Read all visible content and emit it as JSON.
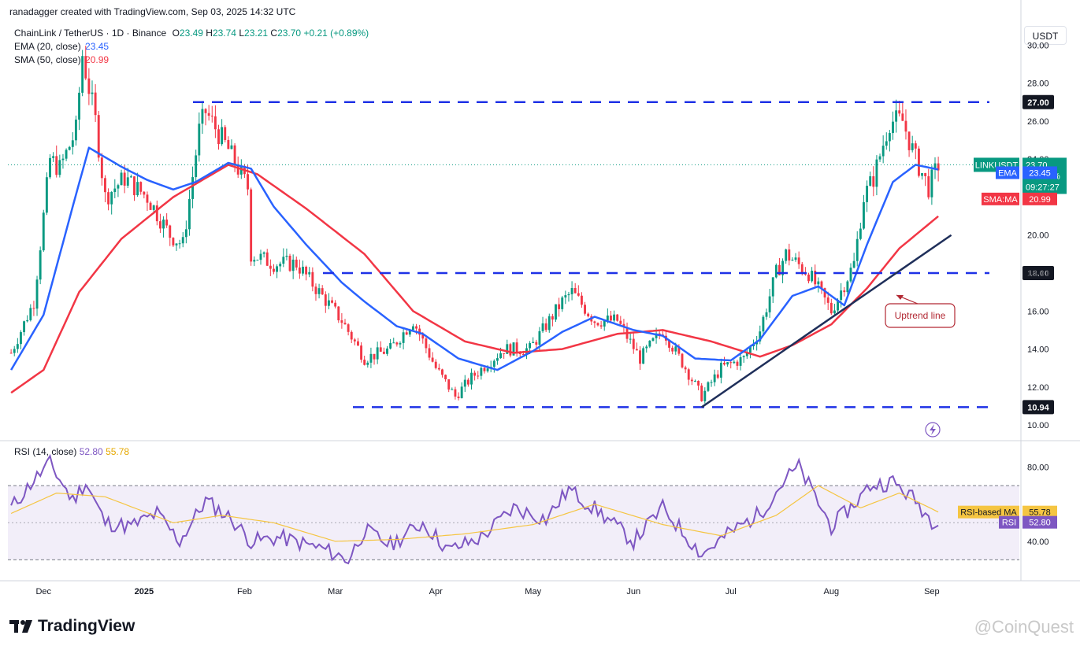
{
  "caption": "ranadagger created with TradingView.com, Sep 03, 2025 14:32 UTC",
  "legend": {
    "symbol": "ChainLink / TetherUS · 1D · Binance",
    "ohlc": {
      "o_label": "O",
      "o": "23.49",
      "h_label": "H",
      "h": "23.74",
      "l_label": "L",
      "l": "23.21",
      "c_label": "C",
      "c": "23.70",
      "change": "+0.21 (+0.89%)"
    },
    "ema": {
      "label": "EMA (20, close)",
      "value": "23.45"
    },
    "sma": {
      "label": "SMA (50, close)",
      "value": "20.99"
    },
    "rsi": {
      "label": "RSI (14, close)",
      "value": "52.80",
      "ma_value": "55.78"
    }
  },
  "currency_button": "USDT",
  "brand": "TradingView",
  "watermark": "@CoinQuest",
  "colors": {
    "up": "#089981",
    "down": "#f23645",
    "ema": "#2962ff",
    "sma": "#f23645",
    "rsi": "#7e57c2",
    "rsi_ma": "#f5c542",
    "levels": "#1e31e6",
    "trend": "#1f2f5a",
    "annotation": "#b22833"
  },
  "chart_data": {
    "type": "candlestick",
    "title": "ChainLink / TetherUS · 1D · Binance",
    "x_ticks": [
      "Dec",
      "2025",
      "Feb",
      "Mar",
      "Apr",
      "May",
      "Jun",
      "Jul",
      "Aug",
      "Sep"
    ],
    "y_ticks": [
      "10.00",
      "12.00",
      "14.00",
      "16.00",
      "18.00",
      "20.00",
      "22.00",
      "24.00",
      "26.00",
      "28.00",
      "30.00"
    ],
    "ylim": [
      9.3,
      31.3
    ],
    "candle_anchors": [
      {
        "date": "2024-11-21",
        "close": 13.8
      },
      {
        "date": "2024-11-28",
        "close": 16.5
      },
      {
        "date": "2024-12-03",
        "close": 24.0
      },
      {
        "date": "2024-12-06",
        "close": 23.5
      },
      {
        "date": "2024-12-11",
        "close": 25.5
      },
      {
        "date": "2024-12-13",
        "close": 29.5
      },
      {
        "date": "2024-12-17",
        "close": 26.0
      },
      {
        "date": "2024-12-20",
        "close": 22.0
      },
      {
        "date": "2024-12-26",
        "close": 23.0
      },
      {
        "date": "2025-01-02",
        "close": 22.0
      },
      {
        "date": "2025-01-09",
        "close": 20.0
      },
      {
        "date": "2025-01-13",
        "close": 19.5
      },
      {
        "date": "2025-01-18",
        "close": 25.5
      },
      {
        "date": "2025-01-20",
        "close": 26.5
      },
      {
        "date": "2025-01-27",
        "close": 24.5
      },
      {
        "date": "2025-02-02",
        "close": 22.5
      },
      {
        "date": "2025-02-03",
        "close": 19.0
      },
      {
        "date": "2025-02-10",
        "close": 18.5
      },
      {
        "date": "2025-02-17",
        "close": 18.5
      },
      {
        "date": "2025-02-24",
        "close": 17.0
      },
      {
        "date": "2025-03-03",
        "close": 15.5
      },
      {
        "date": "2025-03-10",
        "close": 13.5
      },
      {
        "date": "2025-03-18",
        "close": 14.0
      },
      {
        "date": "2025-03-25",
        "close": 15.5
      },
      {
        "date": "2025-04-01",
        "close": 13.0
      },
      {
        "date": "2025-04-07",
        "close": 11.5
      },
      {
        "date": "2025-04-12",
        "close": 12.5
      },
      {
        "date": "2025-04-22",
        "close": 14.0
      },
      {
        "date": "2025-04-30",
        "close": 14.0
      },
      {
        "date": "2025-05-10",
        "close": 16.5
      },
      {
        "date": "2025-05-13",
        "close": 17.0
      },
      {
        "date": "2025-05-20",
        "close": 15.5
      },
      {
        "date": "2025-05-27",
        "close": 15.5
      },
      {
        "date": "2025-06-03",
        "close": 13.5
      },
      {
        "date": "2025-06-10",
        "close": 15.0
      },
      {
        "date": "2025-06-17",
        "close": 13.0
      },
      {
        "date": "2025-06-22",
        "close": 11.5
      },
      {
        "date": "2025-06-28",
        "close": 13.0
      },
      {
        "date": "2025-07-05",
        "close": 13.5
      },
      {
        "date": "2025-07-10",
        "close": 15.0
      },
      {
        "date": "2025-07-15",
        "close": 18.0
      },
      {
        "date": "2025-07-18",
        "close": 19.0
      },
      {
        "date": "2025-07-25",
        "close": 18.0
      },
      {
        "date": "2025-08-01",
        "close": 16.0
      },
      {
        "date": "2025-08-08",
        "close": 18.5
      },
      {
        "date": "2025-08-11",
        "close": 22.0
      },
      {
        "date": "2025-08-14",
        "close": 23.0
      },
      {
        "date": "2025-08-19",
        "close": 26.0
      },
      {
        "date": "2025-08-23",
        "close": 26.0
      },
      {
        "date": "2025-08-27",
        "close": 24.0
      },
      {
        "date": "2025-08-31",
        "close": 22.5
      },
      {
        "date": "2025-09-03",
        "close": 23.7
      }
    ],
    "ema_anchors": [
      {
        "date": "2024-11-21",
        "value": 12.9
      },
      {
        "date": "2024-12-01",
        "value": 15.8
      },
      {
        "date": "2024-12-10",
        "value": 21.5
      },
      {
        "date": "2024-12-15",
        "value": 24.6
      },
      {
        "date": "2024-12-25",
        "value": 23.6
      },
      {
        "date": "2025-01-02",
        "value": 22.9
      },
      {
        "date": "2025-01-10",
        "value": 22.4
      },
      {
        "date": "2025-01-17",
        "value": 22.8
      },
      {
        "date": "2025-01-27",
        "value": 23.8
      },
      {
        "date": "2025-02-03",
        "value": 23.5
      },
      {
        "date": "2025-02-10",
        "value": 21.5
      },
      {
        "date": "2025-02-20",
        "value": 19.5
      },
      {
        "date": "2025-03-03",
        "value": 17.5
      },
      {
        "date": "2025-03-10",
        "value": 16.5
      },
      {
        "date": "2025-03-20",
        "value": 15.2
      },
      {
        "date": "2025-03-28",
        "value": 14.8
      },
      {
        "date": "2025-04-08",
        "value": 13.5
      },
      {
        "date": "2025-04-20",
        "value": 12.9
      },
      {
        "date": "2025-05-01",
        "value": 13.9
      },
      {
        "date": "2025-05-10",
        "value": 14.9
      },
      {
        "date": "2025-05-20",
        "value": 15.7
      },
      {
        "date": "2025-06-01",
        "value": 15.0
      },
      {
        "date": "2025-06-10",
        "value": 14.7
      },
      {
        "date": "2025-06-20",
        "value": 13.5
      },
      {
        "date": "2025-07-01",
        "value": 13.4
      },
      {
        "date": "2025-07-10",
        "value": 14.5
      },
      {
        "date": "2025-07-20",
        "value": 16.8
      },
      {
        "date": "2025-07-28",
        "value": 17.3
      },
      {
        "date": "2025-08-05",
        "value": 16.3
      },
      {
        "date": "2025-08-12",
        "value": 19.5
      },
      {
        "date": "2025-08-20",
        "value": 22.8
      },
      {
        "date": "2025-08-27",
        "value": 23.7
      },
      {
        "date": "2025-09-03",
        "value": 23.45
      }
    ],
    "sma_anchors": [
      {
        "date": "2024-11-21",
        "value": 11.7
      },
      {
        "date": "2024-12-01",
        "value": 12.9
      },
      {
        "date": "2024-12-12",
        "value": 17.0
      },
      {
        "date": "2024-12-25",
        "value": 19.8
      },
      {
        "date": "2025-01-10",
        "value": 22.0
      },
      {
        "date": "2025-01-27",
        "value": 23.7
      },
      {
        "date": "2025-02-05",
        "value": 23.2
      },
      {
        "date": "2025-02-20",
        "value": 21.4
      },
      {
        "date": "2025-03-10",
        "value": 19.0
      },
      {
        "date": "2025-03-25",
        "value": 16.0
      },
      {
        "date": "2025-04-10",
        "value": 14.4
      },
      {
        "date": "2025-04-25",
        "value": 13.8
      },
      {
        "date": "2025-05-10",
        "value": 14.0
      },
      {
        "date": "2025-05-27",
        "value": 14.8
      },
      {
        "date": "2025-06-10",
        "value": 15.0
      },
      {
        "date": "2025-06-25",
        "value": 14.4
      },
      {
        "date": "2025-07-10",
        "value": 13.6
      },
      {
        "date": "2025-07-20",
        "value": 14.2
      },
      {
        "date": "2025-08-01",
        "value": 15.3
      },
      {
        "date": "2025-08-12",
        "value": 17.2
      },
      {
        "date": "2025-08-22",
        "value": 19.3
      },
      {
        "date": "2025-09-03",
        "value": 20.99
      }
    ],
    "rsi_anchors": [
      {
        "date": "2024-11-21",
        "value": 58
      },
      {
        "date": "2024-11-28",
        "value": 73
      },
      {
        "date": "2024-12-03",
        "value": 82
      },
      {
        "date": "2024-12-10",
        "value": 62
      },
      {
        "date": "2024-12-14",
        "value": 72
      },
      {
        "date": "2024-12-20",
        "value": 50
      },
      {
        "date": "2024-12-28",
        "value": 48
      },
      {
        "date": "2025-01-05",
        "value": 55
      },
      {
        "date": "2025-01-12",
        "value": 40
      },
      {
        "date": "2025-01-20",
        "value": 62
      },
      {
        "date": "2025-01-28",
        "value": 52
      },
      {
        "date": "2025-02-03",
        "value": 40
      },
      {
        "date": "2025-02-12",
        "value": 42
      },
      {
        "date": "2025-02-25",
        "value": 36
      },
      {
        "date": "2025-03-05",
        "value": 30
      },
      {
        "date": "2025-03-10",
        "value": 46
      },
      {
        "date": "2025-03-18",
        "value": 38
      },
      {
        "date": "2025-03-28",
        "value": 50
      },
      {
        "date": "2025-04-05",
        "value": 35
      },
      {
        "date": "2025-04-15",
        "value": 42
      },
      {
        "date": "2025-04-25",
        "value": 58
      },
      {
        "date": "2025-05-05",
        "value": 52
      },
      {
        "date": "2025-05-12",
        "value": 68
      },
      {
        "date": "2025-05-22",
        "value": 55
      },
      {
        "date": "2025-06-01",
        "value": 40
      },
      {
        "date": "2025-06-10",
        "value": 58
      },
      {
        "date": "2025-06-22",
        "value": 33
      },
      {
        "date": "2025-07-01",
        "value": 45
      },
      {
        "date": "2025-07-10",
        "value": 55
      },
      {
        "date": "2025-07-18",
        "value": 74
      },
      {
        "date": "2025-07-22",
        "value": 80
      },
      {
        "date": "2025-08-01",
        "value": 48
      },
      {
        "date": "2025-08-08",
        "value": 60
      },
      {
        "date": "2025-08-13",
        "value": 70
      },
      {
        "date": "2025-08-20",
        "value": 72
      },
      {
        "date": "2025-08-27",
        "value": 62
      },
      {
        "date": "2025-09-01",
        "value": 51
      },
      {
        "date": "2025-09-03",
        "value": 52.8
      }
    ],
    "rsi_ma_anchors": [
      {
        "date": "2024-11-21",
        "value": 55
      },
      {
        "date": "2024-12-05",
        "value": 66
      },
      {
        "date": "2024-12-20",
        "value": 64
      },
      {
        "date": "2025-01-10",
        "value": 50
      },
      {
        "date": "2025-01-25",
        "value": 54
      },
      {
        "date": "2025-02-10",
        "value": 50
      },
      {
        "date": "2025-03-01",
        "value": 40
      },
      {
        "date": "2025-03-20",
        "value": 41
      },
      {
        "date": "2025-04-10",
        "value": 44
      },
      {
        "date": "2025-05-01",
        "value": 49
      },
      {
        "date": "2025-05-20",
        "value": 60
      },
      {
        "date": "2025-06-10",
        "value": 49
      },
      {
        "date": "2025-06-28",
        "value": 43
      },
      {
        "date": "2025-07-15",
        "value": 54
      },
      {
        "date": "2025-07-28",
        "value": 70
      },
      {
        "date": "2025-08-10",
        "value": 58
      },
      {
        "date": "2025-08-22",
        "value": 66
      },
      {
        "date": "2025-09-03",
        "value": 55.78
      }
    ],
    "rsi_y_ticks": [
      "40.00",
      "80.00"
    ],
    "rsi_bands": [
      30,
      70
    ],
    "levels": [
      {
        "label": "27.00",
        "value": 27.0
      },
      {
        "label": "18.00",
        "value": 18.0
      },
      {
        "label": "10.94",
        "value": 10.94
      }
    ],
    "trendline": {
      "from": {
        "date": "2025-06-22",
        "value": 10.94
      },
      "to": {
        "date": "2025-09-07",
        "value": 20.0
      }
    },
    "annotation": "Uptrend line",
    "price_labels": {
      "symbol_tag": "LINKUSDT",
      "last": "23.70",
      "pct": "+71.24%",
      "countdown": "09:27:27",
      "ema_tag": "EMA",
      "ema_value": "23.45",
      "sma_tag": "SMA:MA",
      "sma_value": "20.99"
    },
    "rsi_price_labels": {
      "ma_tag": "RSI-based MA",
      "ma_value": "55.78",
      "rsi_tag": "RSI",
      "rsi_value": "52.80"
    }
  }
}
